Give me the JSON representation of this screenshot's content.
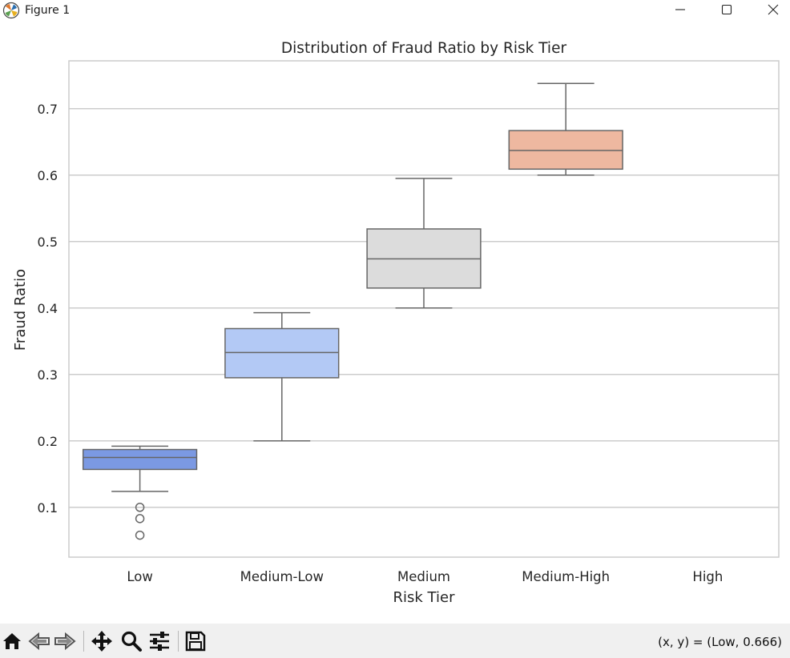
{
  "window": {
    "title": "Figure 1"
  },
  "toolbar": {
    "icons": [
      "home-icon",
      "back-icon",
      "forward-icon",
      "pan-icon",
      "zoom-icon",
      "configure-icon",
      "save-icon"
    ],
    "coords_text": "(x, y) = (Low, 0.666)"
  },
  "chart_data": {
    "type": "box",
    "title": "Distribution of Fraud Ratio by Risk Tier",
    "xlabel": "Risk Tier",
    "ylabel": "Fraud Ratio",
    "ylim": [
      0.025,
      0.772
    ],
    "yticks": [
      0.1,
      0.2,
      0.3,
      0.4,
      0.5,
      0.6,
      0.7
    ],
    "ytick_labels": [
      "0.1",
      "0.2",
      "0.3",
      "0.4",
      "0.5",
      "0.6",
      "0.7"
    ],
    "grid": "horizontal",
    "categories": [
      "Low",
      "Medium-Low",
      "Medium",
      "Medium-High",
      "High"
    ],
    "boxes": [
      {
        "category": "Low",
        "whisker_low": 0.124,
        "q1": 0.157,
        "median": 0.175,
        "q3": 0.187,
        "whisker_high": 0.192,
        "outliers": [
          0.1,
          0.083,
          0.058
        ],
        "color": "#7b99e3"
      },
      {
        "category": "Medium-Low",
        "whisker_low": 0.2,
        "q1": 0.295,
        "median": 0.333,
        "q3": 0.369,
        "whisker_high": 0.393,
        "outliers": [],
        "color": "#b3c9f5"
      },
      {
        "category": "Medium",
        "whisker_low": 0.4,
        "q1": 0.43,
        "median": 0.474,
        "q3": 0.519,
        "whisker_high": 0.595,
        "outliers": [],
        "color": "#dcdcdc"
      },
      {
        "category": "Medium-High",
        "whisker_low": 0.6,
        "q1": 0.609,
        "median": 0.637,
        "q3": 0.667,
        "whisker_high": 0.738,
        "outliers": [],
        "color": "#eeb8a0"
      }
    ]
  }
}
